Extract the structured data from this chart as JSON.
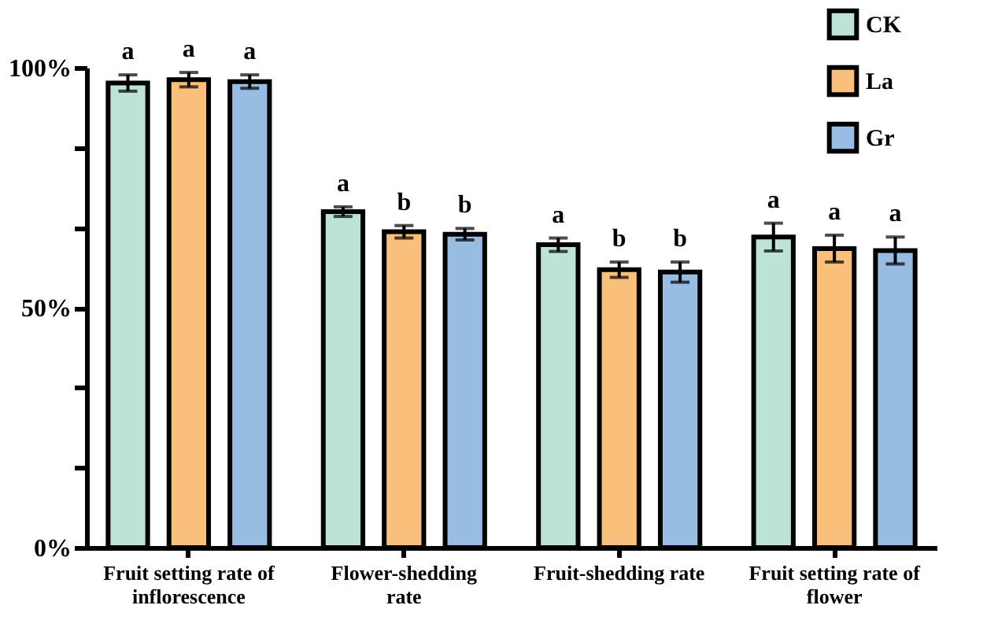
{
  "chart_data": {
    "type": "bar",
    "categories": [
      "Fruit setting rate of\ninflorescence",
      "Flower-shedding\nrate",
      "Fruit-shedding rate",
      "Fruit setting rate of\nflower"
    ],
    "series": [
      {
        "name": "CK",
        "color": "#bde3d6",
        "values": [
          96.8,
          70.0,
          63.1,
          64.7
        ],
        "errors": [
          1.7,
          1.0,
          1.4,
          2.9
        ],
        "value_labels": [
          "a",
          "a",
          "a",
          "a"
        ]
      },
      {
        "name": "La",
        "color": "#fbbf7c",
        "values": [
          97.5,
          65.8,
          57.9,
          62.3
        ],
        "errors": [
          1.5,
          1.3,
          1.6,
          2.8
        ],
        "value_labels": [
          "a",
          "b",
          "b",
          "a"
        ]
      },
      {
        "name": "Gr",
        "color": "#97bde3",
        "values": [
          97.1,
          65.3,
          57.4,
          61.9
        ],
        "errors": [
          1.4,
          1.2,
          2.1,
          2.8
        ],
        "value_labels": [
          "a",
          "b",
          "b",
          "a"
        ]
      }
    ],
    "ylim": [
      0,
      100
    ],
    "yticks": [
      {
        "value": 0,
        "label": "0%"
      },
      {
        "value": 16.67,
        "label": null
      },
      {
        "value": 33.33,
        "label": null
      },
      {
        "value": 50,
        "label": "50%"
      },
      {
        "value": 66.67,
        "label": null
      },
      {
        "value": 83.33,
        "label": null
      },
      {
        "value": 100,
        "label": "100%"
      }
    ],
    "grid": false,
    "legend": "top right"
  }
}
